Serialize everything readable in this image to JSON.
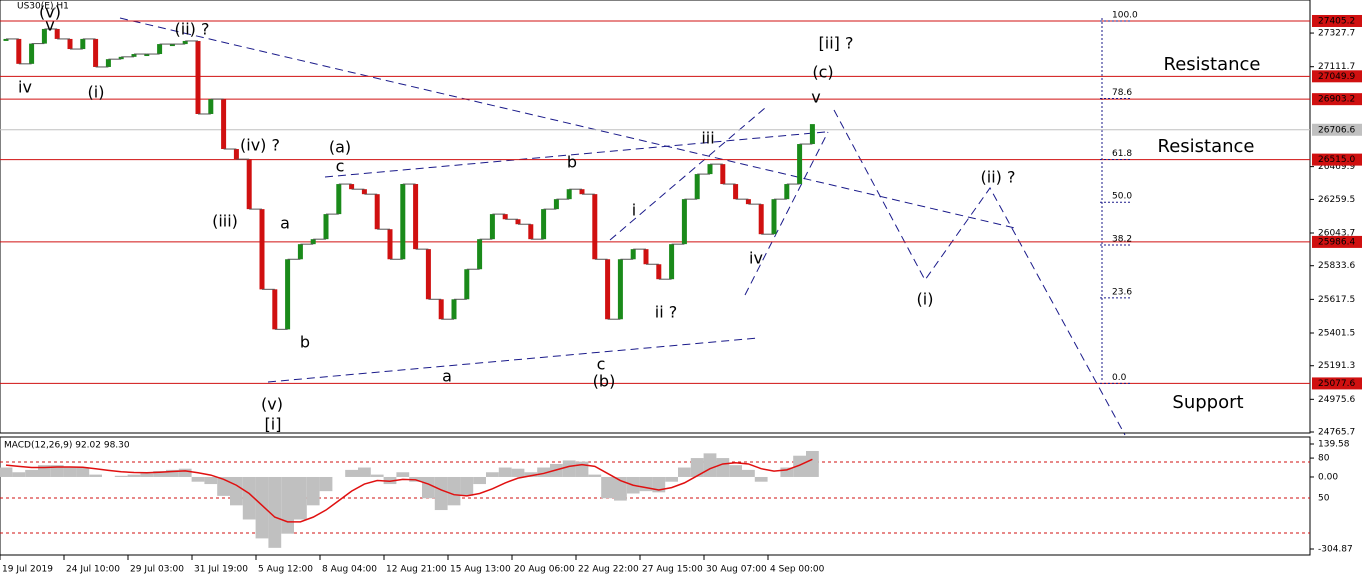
{
  "chart_data": [
    {
      "type": "line",
      "title": "US30(E),H1",
      "categories": [
        "19 Jul 2019",
        null,
        null,
        null,
        null,
        "24 Jul 10:00",
        null,
        null,
        null,
        null,
        "29 Jul 03:00",
        null,
        null,
        null,
        null,
        "31 Jul 19:00",
        null,
        null,
        null,
        null,
        "5 Aug 12:00",
        null,
        null,
        null,
        null,
        "8 Aug 04:00",
        null,
        null,
        null,
        null,
        "12 Aug 21:00",
        null,
        null,
        null,
        null,
        "15 Aug 13:00",
        null,
        null,
        null,
        null,
        "20 Aug 06:00",
        null,
        null,
        null,
        null,
        "22 Aug 22:00",
        null,
        null,
        null,
        null,
        "27 Aug 15:00",
        null,
        null,
        null,
        null,
        "30 Aug 07:00",
        null,
        null,
        null,
        null,
        "4 Sep 00:00",
        null,
        null,
        null
      ],
      "values": [
        27290,
        27130,
        27260,
        27354,
        27290,
        27225,
        27290,
        27110,
        27160,
        27175,
        27193,
        27193,
        27257,
        27257,
        27277,
        26808,
        26904,
        26583,
        26518,
        26197,
        25682,
        25425,
        25875,
        25972,
        26004,
        26165,
        26358,
        26325,
        26293,
        26068,
        25875,
        26358,
        25940,
        25618,
        25490,
        25618,
        25811,
        26004,
        26165,
        26132,
        26100,
        26004,
        26197,
        26261,
        26325,
        26293,
        25875,
        25490,
        25875,
        25940,
        25843,
        25747,
        25972,
        26261,
        26422,
        26486,
        26358,
        26261,
        26229,
        26036,
        26261,
        26358,
        26615,
        26743
      ],
      "up_color": "#1a8a1a",
      "down_color": "#d01010",
      "ylim": [
        24765.7,
        27540
      ],
      "yticks": [
        27327.7,
        27111.7,
        26469.9,
        26259.5,
        26043.7,
        25833.6,
        25617.5,
        25401.5,
        25191.3,
        24975.6,
        24765.7
      ],
      "levels": [
        {
          "value": 27405.2,
          "label": "27405.2",
          "color": "#d01010"
        },
        {
          "value": 27049.9,
          "label": "27049.9",
          "color": "#d01010"
        },
        {
          "value": 26903.2,
          "label": "26903.2",
          "color": "#d01010"
        },
        {
          "value": 26706.6,
          "label": "26706.6",
          "color": "#c0c0c0"
        },
        {
          "value": 26515,
          "label": "26515.0",
          "color": "#d01010"
        },
        {
          "value": 25986.4,
          "label": "25986.4",
          "color": "#d01010"
        },
        {
          "value": 25077.6,
          "label": "25077.6",
          "color": "#d01010"
        }
      ],
      "fib_levels": [
        {
          "value": 100,
          "label": "100.0"
        },
        78.6,
        61.8,
        {
          "value": 50,
          "label": "50.0"
        },
        38.2,
        23.6,
        {
          "value": 0,
          "label": "0.0"
        }
      ],
      "annotations": [
        {
          "text": "(v)",
          "color": "#404040"
        },
        {
          "text": "v",
          "color": "#e020c0"
        },
        {
          "text": "iv",
          "color": "#e020c0"
        },
        {
          "text": "(i)",
          "color": "#404040"
        },
        {
          "text": "(ii) ?",
          "color": "#404040"
        },
        {
          "text": "(iv) ?",
          "color": "#404040"
        },
        {
          "text": "(iii)",
          "color": "#404040"
        },
        {
          "text": "a",
          "color": "#e020c0"
        },
        {
          "text": "b",
          "color": "#e020c0"
        },
        {
          "text": "(a)",
          "color": "#404040"
        },
        {
          "text": "c",
          "color": "#e020c0"
        },
        {
          "text": "b",
          "color": "#e020c0"
        },
        {
          "text": "a",
          "color": "#e020c0"
        },
        {
          "text": "c",
          "color": "#e020c0"
        },
        {
          "text": "(b)",
          "color": "#404040"
        },
        {
          "text": "i",
          "color": "#e020c0"
        },
        {
          "text": "ii ?",
          "color": "#e020c0"
        },
        {
          "text": "iii",
          "color": "#e020c0"
        },
        {
          "text": "iv",
          "color": "#e020c0"
        },
        {
          "text": "v",
          "color": "#e020c0"
        },
        {
          "text": "(c)",
          "color": "#404040"
        },
        {
          "text": "[ii] ?",
          "color": "#1a8a1a"
        },
        {
          "text": "(ii) ?",
          "color": "#404040"
        },
        {
          "text": "(i)",
          "color": "#404040"
        },
        {
          "text": "(v)",
          "color": "#404040"
        },
        {
          "text": "[i]",
          "color": "#1a8a1a"
        },
        {
          "text": "Resistance",
          "color": "#e01010"
        },
        {
          "text": "Resistance",
          "color": "#e01010"
        },
        {
          "text": "Support",
          "color": "#e01010"
        }
      ]
    },
    {
      "type": "bar",
      "title": "MACD(12,26,9) 92.02 98.30",
      "values": [
        40,
        20,
        30,
        50,
        50,
        40,
        40,
        10,
        0,
        5,
        10,
        15,
        25,
        30,
        35,
        -20,
        -30,
        -80,
        -120,
        -180,
        -260,
        -300,
        -240,
        -180,
        -120,
        -60,
        0,
        30,
        40,
        10,
        -30,
        20,
        -20,
        -90,
        -140,
        -120,
        -80,
        -30,
        20,
        40,
        35,
        20,
        40,
        55,
        70,
        65,
        10,
        -90,
        -100,
        -70,
        -60,
        -65,
        -20,
        40,
        80,
        100,
        80,
        50,
        30,
        -20,
        0,
        40,
        90,
        110
      ],
      "color": "#c0c0c0",
      "signal_values": [
        50,
        45,
        40,
        40,
        42,
        42,
        41,
        35,
        28,
        22,
        19,
        18,
        20,
        23,
        26,
        18,
        8,
        -10,
        -35,
        -70,
        -120,
        -170,
        -190,
        -190,
        -170,
        -140,
        -100,
        -60,
        -30,
        -15,
        -18,
        -10,
        -12,
        -30,
        -55,
        -75,
        -80,
        -70,
        -50,
        -25,
        -5,
        5,
        15,
        30,
        45,
        52,
        45,
        15,
        -15,
        -35,
        -45,
        -55,
        -45,
        -25,
        5,
        35,
        55,
        60,
        55,
        35,
        25,
        30,
        50,
        75
      ],
      "signal_color": "#e01010",
      "ylim": [
        -304.87,
        139.58
      ],
      "yticks": [
        139.58,
        80,
        {
          "value": 0,
          "label": "0.00"
        },
        -304.87
      ],
      "level_label": "50"
    }
  ]
}
